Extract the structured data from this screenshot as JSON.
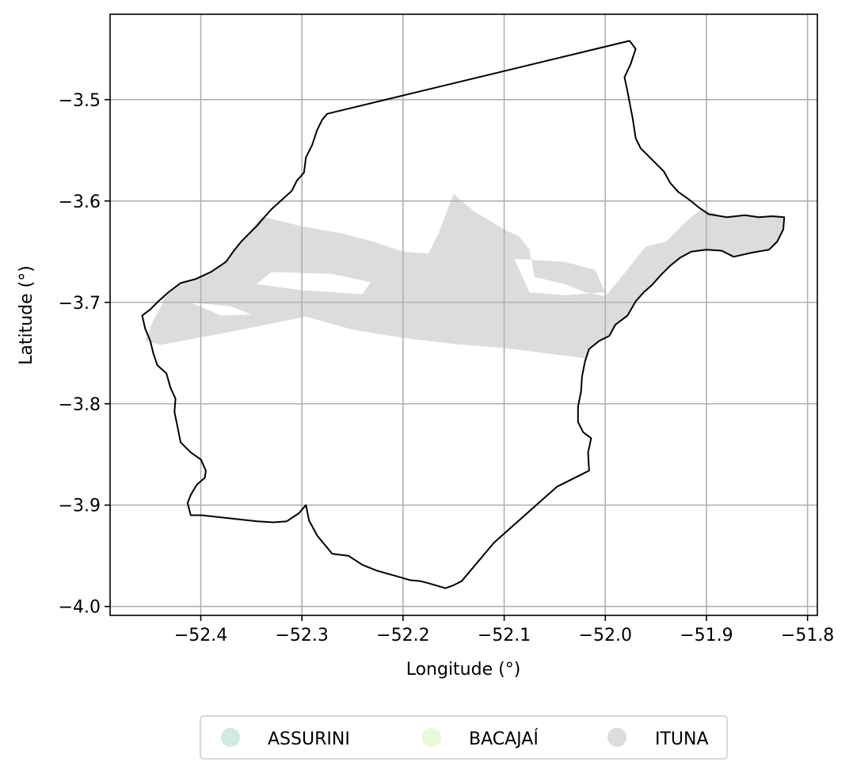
{
  "chart_data": {
    "type": "map",
    "xlabel": "Longitude (°)",
    "ylabel": "Latitude (°)",
    "xlim": [
      -52.4897,
      -51.7903
    ],
    "ylim": [
      -4.0088,
      -3.4158
    ],
    "xticks": [
      -52.4,
      -52.3,
      -52.2,
      -52.1,
      -52.0,
      -51.9,
      -51.8
    ],
    "yticks": [
      -3.5,
      -3.6,
      -3.7,
      -3.8,
      -3.9,
      -4.0
    ],
    "xtick_labels": [
      "−52.4",
      "−52.3",
      "−52.2",
      "−52.1",
      "−52.0",
      "−51.9",
      "−51.8"
    ],
    "ytick_labels": [
      "−3.5",
      "−3.6",
      "−3.7",
      "−3.8",
      "−3.9",
      "−4.0"
    ],
    "grid": true,
    "legend_position": "bottom-center",
    "categories": [
      {
        "name": "ASSURINI",
        "color": "#cfeadf"
      },
      {
        "name": "BACAJAÍ",
        "color": "#e9f7da"
      },
      {
        "name": "ITUNA",
        "color": "#dcdcdc"
      }
    ],
    "boundary": {
      "color": "#000000",
      "coordinates": [
        [
          -52.275,
          -3.514
        ],
        [
          -51.976,
          -3.442
        ],
        [
          -51.97,
          -3.45
        ],
        [
          -51.975,
          -3.465
        ],
        [
          -51.981,
          -3.478
        ],
        [
          -51.978,
          -3.492
        ],
        [
          -51.975,
          -3.508
        ],
        [
          -51.973,
          -3.518
        ],
        [
          -51.97,
          -3.538
        ],
        [
          -51.965,
          -3.548
        ],
        [
          -51.958,
          -3.555
        ],
        [
          -51.95,
          -3.563
        ],
        [
          -51.942,
          -3.571
        ],
        [
          -51.936,
          -3.582
        ],
        [
          -51.928,
          -3.591
        ],
        [
          -51.918,
          -3.598
        ],
        [
          -51.908,
          -3.606
        ],
        [
          -51.898,
          -3.613
        ],
        [
          -51.88,
          -3.616
        ],
        [
          -51.862,
          -3.614
        ],
        [
          -51.848,
          -3.616
        ],
        [
          -51.835,
          -3.615
        ],
        [
          -51.823,
          -3.616
        ],
        [
          -51.824,
          -3.628
        ],
        [
          -51.83,
          -3.64
        ],
        [
          -51.838,
          -3.648
        ],
        [
          -51.855,
          -3.651
        ],
        [
          -51.873,
          -3.655
        ],
        [
          -51.885,
          -3.649
        ],
        [
          -51.9,
          -3.648
        ],
        [
          -51.915,
          -3.65
        ],
        [
          -51.926,
          -3.656
        ],
        [
          -51.936,
          -3.664
        ],
        [
          -51.945,
          -3.673
        ],
        [
          -51.954,
          -3.683
        ],
        [
          -51.962,
          -3.69
        ],
        [
          -51.97,
          -3.699
        ],
        [
          -51.978,
          -3.713
        ],
        [
          -51.99,
          -3.722
        ],
        [
          -51.996,
          -3.733
        ],
        [
          -52.006,
          -3.738
        ],
        [
          -52.016,
          -3.746
        ],
        [
          -52.02,
          -3.758
        ],
        [
          -52.023,
          -3.773
        ],
        [
          -52.024,
          -3.788
        ],
        [
          -52.027,
          -3.803
        ],
        [
          -52.027,
          -3.818
        ],
        [
          -52.022,
          -3.828
        ],
        [
          -52.014,
          -3.834
        ],
        [
          -52.017,
          -3.848
        ],
        [
          -52.016,
          -3.866
        ],
        [
          -52.048,
          -3.882
        ],
        [
          -52.11,
          -3.937
        ],
        [
          -52.142,
          -3.975
        ],
        [
          -52.15,
          -3.979
        ],
        [
          -52.158,
          -3.982
        ],
        [
          -52.165,
          -3.98
        ],
        [
          -52.175,
          -3.977
        ],
        [
          -52.183,
          -3.975
        ],
        [
          -52.193,
          -3.974
        ],
        [
          -52.207,
          -3.97
        ],
        [
          -52.225,
          -3.965
        ],
        [
          -52.24,
          -3.959
        ],
        [
          -52.254,
          -3.95
        ],
        [
          -52.27,
          -3.948
        ],
        [
          -52.285,
          -3.93
        ],
        [
          -52.293,
          -3.915
        ],
        [
          -52.296,
          -3.9
        ],
        [
          -52.303,
          -3.908
        ],
        [
          -52.315,
          -3.916
        ],
        [
          -52.328,
          -3.917
        ],
        [
          -52.344,
          -3.916
        ],
        [
          -52.4,
          -3.91
        ],
        [
          -52.41,
          -3.91
        ],
        [
          -52.413,
          -3.898
        ],
        [
          -52.41,
          -3.89
        ],
        [
          -52.404,
          -3.88
        ],
        [
          -52.396,
          -3.873
        ],
        [
          -52.395,
          -3.866
        ],
        [
          -52.4,
          -3.855
        ],
        [
          -52.41,
          -3.848
        ],
        [
          -52.42,
          -3.838
        ],
        [
          -52.423,
          -3.823
        ],
        [
          -52.426,
          -3.808
        ],
        [
          -52.425,
          -3.795
        ],
        [
          -52.43,
          -3.784
        ],
        [
          -52.434,
          -3.77
        ],
        [
          -52.443,
          -3.762
        ],
        [
          -52.447,
          -3.75
        ],
        [
          -52.45,
          -3.738
        ],
        [
          -52.455,
          -3.726
        ],
        [
          -52.458,
          -3.713
        ],
        [
          -52.45,
          -3.707
        ],
        [
          -52.442,
          -3.699
        ],
        [
          -52.432,
          -3.69
        ],
        [
          -52.42,
          -3.681
        ],
        [
          -52.405,
          -3.677
        ],
        [
          -52.39,
          -3.67
        ],
        [
          -52.375,
          -3.66
        ],
        [
          -52.368,
          -3.65
        ],
        [
          -52.36,
          -3.64
        ],
        [
          -52.352,
          -3.632
        ],
        [
          -52.345,
          -3.625
        ],
        [
          -52.338,
          -3.617
        ],
        [
          -52.33,
          -3.608
        ],
        [
          -52.32,
          -3.599
        ],
        [
          -52.31,
          -3.59
        ],
        [
          -52.305,
          -3.58
        ],
        [
          -52.298,
          -3.572
        ],
        [
          -52.296,
          -3.557
        ],
        [
          -52.29,
          -3.545
        ],
        [
          -52.285,
          -3.53
        ],
        [
          -52.28,
          -3.52
        ],
        [
          -52.275,
          -3.514
        ]
      ]
    },
    "ituna_area": {
      "color": "#dcdcdc",
      "outline": [
        [
          -52.455,
          -3.738
        ],
        [
          -52.447,
          -3.718
        ],
        [
          -52.433,
          -3.692
        ],
        [
          -52.42,
          -3.682
        ],
        [
          -52.4,
          -3.675
        ],
        [
          -52.386,
          -3.668
        ],
        [
          -52.372,
          -3.655
        ],
        [
          -52.36,
          -3.641
        ],
        [
          -52.34,
          -3.615
        ],
        [
          -52.3,
          -3.625
        ],
        [
          -52.26,
          -3.632
        ],
        [
          -52.23,
          -3.64
        ],
        [
          -52.2,
          -3.65
        ],
        [
          -52.175,
          -3.652
        ],
        [
          -52.165,
          -3.632
        ],
        [
          -52.15,
          -3.593
        ],
        [
          -52.13,
          -3.61
        ],
        [
          -52.11,
          -3.622
        ],
        [
          -52.1,
          -3.628
        ],
        [
          -52.085,
          -3.635
        ],
        [
          -52.075,
          -3.648
        ],
        [
          -52.07,
          -3.675
        ],
        [
          -52.04,
          -3.682
        ],
        [
          -52.02,
          -3.69
        ],
        [
          -52.0,
          -3.694
        ],
        [
          -51.98,
          -3.67
        ],
        [
          -51.96,
          -3.645
        ],
        [
          -51.94,
          -3.64
        ],
        [
          -51.92,
          -3.62
        ],
        [
          -51.905,
          -3.608
        ],
        [
          -51.88,
          -3.616
        ],
        [
          -51.862,
          -3.614
        ],
        [
          -51.848,
          -3.616
        ],
        [
          -51.835,
          -3.615
        ],
        [
          -51.823,
          -3.616
        ],
        [
          -51.824,
          -3.628
        ],
        [
          -51.83,
          -3.64
        ],
        [
          -51.838,
          -3.648
        ],
        [
          -51.855,
          -3.651
        ],
        [
          -51.873,
          -3.655
        ],
        [
          -51.885,
          -3.649
        ],
        [
          -51.9,
          -3.648
        ],
        [
          -51.915,
          -3.65
        ],
        [
          -51.926,
          -3.656
        ],
        [
          -51.936,
          -3.664
        ],
        [
          -51.945,
          -3.673
        ],
        [
          -51.954,
          -3.683
        ],
        [
          -51.962,
          -3.69
        ],
        [
          -51.97,
          -3.699
        ],
        [
          -51.978,
          -3.713
        ],
        [
          -51.99,
          -3.722
        ],
        [
          -51.996,
          -3.733
        ],
        [
          -52.006,
          -3.738
        ],
        [
          -52.015,
          -3.745
        ],
        [
          -52.02,
          -3.755
        ],
        [
          -52.1,
          -3.745
        ],
        [
          -52.15,
          -3.741
        ],
        [
          -52.2,
          -3.735
        ],
        [
          -52.25,
          -3.727
        ],
        [
          -52.296,
          -3.714
        ],
        [
          -52.36,
          -3.727
        ],
        [
          -52.44,
          -3.742
        ],
        [
          -52.455,
          -3.738
        ]
      ],
      "gaps": [
        [
          [
            -52.33,
            -3.67
          ],
          [
            -52.27,
            -3.672
          ],
          [
            -52.232,
            -3.68
          ],
          [
            -52.24,
            -3.692
          ],
          [
            -52.3,
            -3.688
          ],
          [
            -52.345,
            -3.682
          ],
          [
            -52.33,
            -3.67
          ]
        ],
        [
          [
            -52.09,
            -3.657
          ],
          [
            -52.04,
            -3.66
          ],
          [
            -52.01,
            -3.668
          ],
          [
            -52.0,
            -3.69
          ],
          [
            -52.04,
            -3.693
          ],
          [
            -52.075,
            -3.69
          ],
          [
            -52.09,
            -3.657
          ]
        ],
        [
          [
            -52.41,
            -3.7
          ],
          [
            -52.37,
            -3.704
          ],
          [
            -52.35,
            -3.712
          ],
          [
            -52.38,
            -3.713
          ],
          [
            -52.41,
            -3.7
          ]
        ]
      ]
    }
  }
}
